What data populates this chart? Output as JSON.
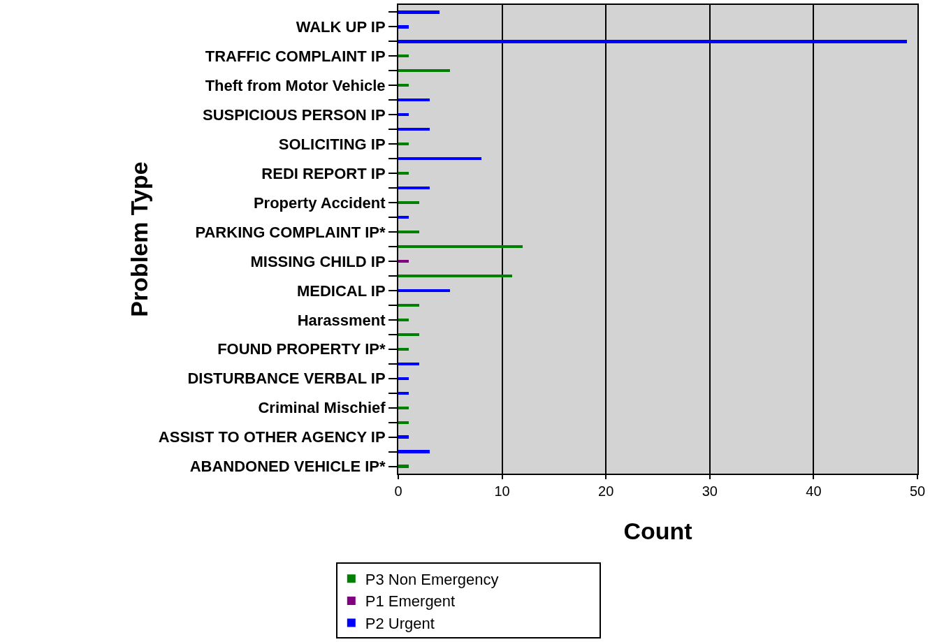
{
  "chart_data": {
    "type": "bar",
    "orientation": "horizontal",
    "stacked": true,
    "xlabel": "Count",
    "ylabel": "Problem Type",
    "categories": [
      null,
      "WALK UP IP",
      null,
      "TRAFFIC COMPLAINT IP",
      null,
      "Theft from Motor Vehicle",
      null,
      "SUSPICIOUS PERSON IP",
      null,
      "SOLICITING IP",
      null,
      "REDI REPORT IP",
      null,
      "Property Accident",
      null,
      "PARKING COMPLAINT IP*",
      null,
      "MISSING CHILD IP",
      null,
      "MEDICAL IP",
      null,
      "Harassment",
      null,
      "FOUND PROPERTY IP*",
      null,
      "DISTURBANCE VERBAL IP",
      null,
      "Criminal Mischief",
      null,
      "ASSIST TO OTHER AGENCY IP",
      null,
      "ABANDONED VEHICLE IP*"
    ],
    "series": [
      {
        "name": "P3 Non Emergency",
        "color": "#008000",
        "values": [
          null,
          null,
          null,
          1,
          5,
          1,
          null,
          null,
          null,
          1,
          null,
          1,
          null,
          2,
          null,
          2,
          12,
          null,
          11,
          null,
          2,
          1,
          2,
          1,
          null,
          null,
          null,
          1,
          1,
          null,
          null,
          1
        ]
      },
      {
        "name": "P1 Emergent",
        "color": "#800080",
        "values": [
          null,
          null,
          null,
          null,
          null,
          null,
          null,
          null,
          null,
          null,
          null,
          null,
          null,
          null,
          null,
          null,
          null,
          1,
          null,
          null,
          null,
          null,
          null,
          null,
          null,
          null,
          null,
          null,
          null,
          null,
          null,
          null
        ]
      },
      {
        "name": "P2 Urgent",
        "color": "#0000ff",
        "values": [
          4,
          1,
          49,
          null,
          null,
          null,
          3,
          1,
          3,
          null,
          8,
          null,
          3,
          null,
          1,
          null,
          null,
          null,
          null,
          5,
          null,
          null,
          null,
          null,
          2,
          1,
          1,
          null,
          null,
          1,
          3,
          null
        ]
      }
    ],
    "xlim": [
      0,
      50
    ],
    "xticks": [
      0,
      10,
      20,
      30,
      40,
      50
    ],
    "grid": "x",
    "legend": "bottom"
  }
}
